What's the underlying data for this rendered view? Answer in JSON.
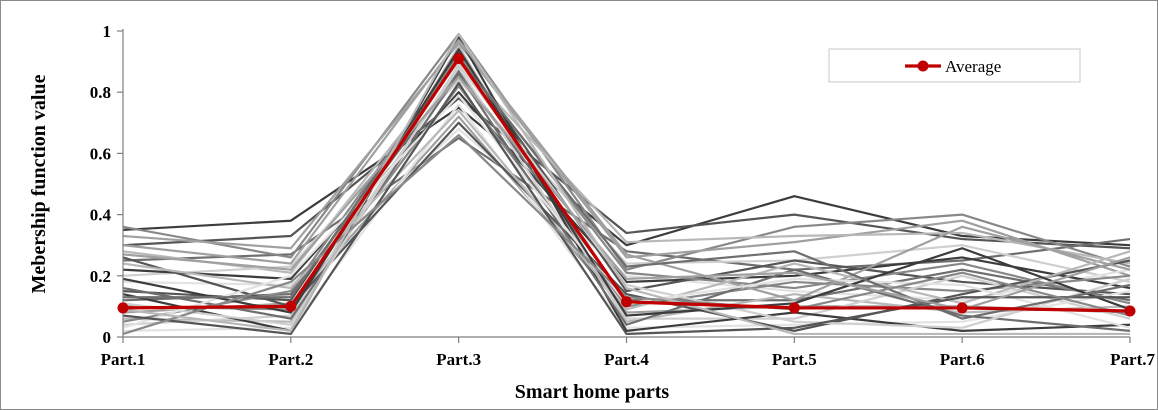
{
  "chart_data": {
    "type": "line",
    "title": "",
    "xlabel": "Smart home parts",
    "ylabel": "Mebership function value",
    "categories": [
      "Part.1",
      "Part.2",
      "Part.3",
      "Part.4",
      "Part.5",
      "Part.6",
      "Part.7"
    ],
    "ylim": [
      0,
      1
    ],
    "yticks": [
      0,
      0.2,
      0.4,
      0.6,
      0.8,
      1
    ],
    "ytick_labels": [
      "0",
      "0.2",
      "0.4",
      "0.6",
      "0.8",
      "1"
    ],
    "grid": false,
    "legend": {
      "placement": "top-right",
      "entries": [
        "Average"
      ]
    },
    "average_series": {
      "name": "Average",
      "color": "#c00000",
      "values": [
        0.095,
        0.1,
        0.91,
        0.115,
        0.095,
        0.095,
        0.085
      ]
    },
    "individual_series_colors": [
      "#3c3c3c",
      "#555555",
      "#6e6e6e",
      "#888888",
      "#a0a0a0",
      "#b8b8b8",
      "#cfcfcf",
      "#e2e2e2"
    ],
    "individual_series": [
      {
        "values": [
          0.35,
          0.38,
          0.75,
          0.3,
          0.46,
          0.33,
          0.3
        ]
      },
      {
        "values": [
          0.3,
          0.33,
          0.78,
          0.34,
          0.4,
          0.32,
          0.29
        ]
      },
      {
        "values": [
          0.25,
          0.27,
          0.65,
          0.28,
          0.22,
          0.25,
          0.32
        ]
      },
      {
        "values": [
          0.36,
          0.26,
          0.99,
          0.22,
          0.36,
          0.4,
          0.23
        ]
      },
      {
        "values": [
          0.33,
          0.29,
          0.96,
          0.26,
          0.31,
          0.38,
          0.2
        ]
      },
      {
        "values": [
          0.28,
          0.21,
          0.9,
          0.31,
          0.33,
          0.34,
          0.24
        ]
      },
      {
        "values": [
          0.2,
          0.23,
          0.84,
          0.24,
          0.25,
          0.3,
          0.18
        ]
      },
      {
        "values": [
          0.18,
          0.17,
          0.68,
          0.2,
          0.15,
          0.12,
          0.22
        ]
      },
      {
        "values": [
          0.22,
          0.19,
          0.8,
          0.18,
          0.2,
          0.26,
          0.16
        ]
      },
      {
        "values": [
          0.15,
          0.12,
          0.93,
          0.15,
          0.25,
          0.18,
          0.14
        ]
      },
      {
        "values": [
          0.12,
          0.14,
          0.87,
          0.12,
          0.12,
          0.22,
          0.12
        ]
      },
      {
        "values": [
          0.1,
          0.09,
          0.82,
          0.1,
          0.18,
          0.15,
          0.2
        ]
      },
      {
        "values": [
          0.08,
          0.11,
          0.72,
          0.08,
          0.1,
          0.1,
          0.08
        ]
      },
      {
        "values": [
          0.06,
          0.05,
          0.95,
          0.05,
          0.14,
          0.08,
          0.1
        ]
      },
      {
        "values": [
          0.04,
          0.07,
          0.88,
          0.06,
          0.06,
          0.2,
          0.06
        ]
      },
      {
        "values": [
          0.02,
          0.03,
          0.76,
          0.03,
          0.04,
          0.05,
          0.15
        ]
      },
      {
        "values": [
          0.14,
          0.02,
          0.98,
          0.02,
          0.08,
          0.02,
          0.04
        ]
      },
      {
        "values": [
          0.26,
          0.1,
          0.7,
          0.14,
          0.02,
          0.14,
          0.25
        ]
      },
      {
        "values": [
          0.16,
          0.06,
          0.86,
          0.04,
          0.22,
          0.07,
          0.02
        ]
      },
      {
        "values": [
          0.05,
          0.15,
          0.92,
          0.21,
          0.16,
          0.24,
          0.11
        ]
      },
      {
        "values": [
          0.3,
          0.24,
          0.97,
          0.27,
          0.12,
          0.36,
          0.22
        ]
      },
      {
        "values": [
          0.24,
          0.16,
          0.74,
          0.09,
          0.24,
          0.11,
          0.28
        ]
      },
      {
        "values": [
          0.11,
          0.04,
          0.89,
          0.17,
          0.05,
          0.03,
          0.19
        ]
      },
      {
        "values": [
          0.03,
          0.2,
          0.79,
          0.11,
          0.19,
          0.17,
          0.03
        ]
      },
      {
        "values": [
          0.19,
          0.08,
          0.94,
          0.07,
          0.11,
          0.29,
          0.09
        ]
      },
      {
        "values": [
          0.07,
          0.01,
          0.83,
          0.01,
          0.03,
          0.13,
          0.13
        ]
      },
      {
        "values": [
          0.13,
          0.13,
          0.91,
          0.23,
          0.28,
          0.06,
          0.17
        ]
      },
      {
        "values": [
          0.01,
          0.18,
          0.66,
          0.13,
          0.09,
          0.21,
          0.07
        ]
      },
      {
        "values": [
          0.27,
          0.22,
          0.85,
          0.19,
          0.21,
          0.09,
          0.26
        ]
      },
      {
        "values": [
          0.09,
          0.02,
          0.99,
          0.16,
          0.01,
          0.01,
          0.01
        ]
      }
    ]
  }
}
